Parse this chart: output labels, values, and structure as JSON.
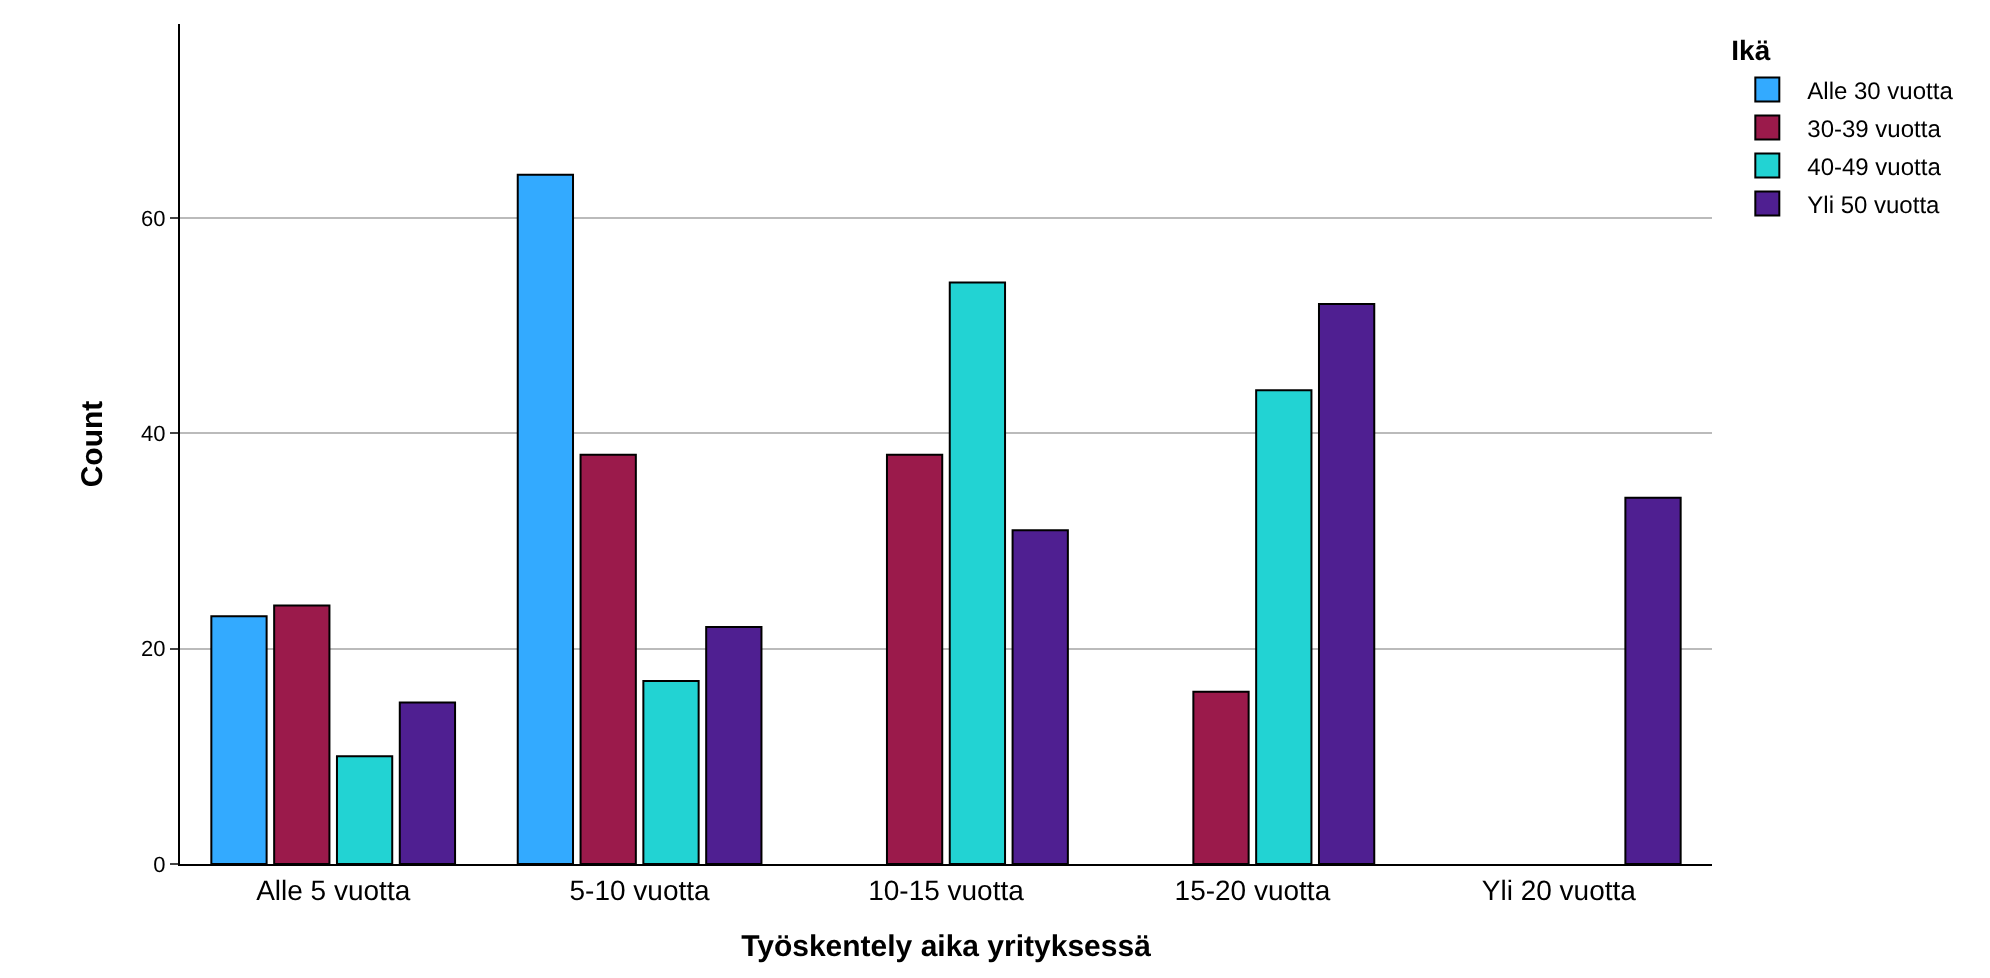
{
  "chart_data": {
    "type": "bar",
    "xlabel": "Työskentely aika yrityksessä",
    "ylabel": "Count",
    "legend_title": "Ikä",
    "categories": [
      "Alle 5 vuotta",
      "5-10 vuotta",
      "10-15 vuotta",
      "15-20 vuotta",
      "Yli 20 vuotta"
    ],
    "series": [
      {
        "name": "Alle 30 vuotta",
        "color": "#33aaff",
        "values": [
          23,
          64,
          null,
          null,
          null
        ]
      },
      {
        "name": "30-39 vuotta",
        "color": "#9b1a4b",
        "values": [
          24,
          38,
          38,
          16,
          null
        ]
      },
      {
        "name": "40-49 vuotta",
        "color": "#22d3d3",
        "values": [
          10,
          17,
          54,
          44,
          null
        ]
      },
      {
        "name": "Yli 50 vuotta",
        "color": "#4f1f91",
        "values": [
          15,
          22,
          31,
          52,
          34
        ]
      }
    ],
    "ylim": [
      0,
      78
    ],
    "yticks": [
      0,
      20,
      40,
      60
    ],
    "grid": "y",
    "legend": "top right"
  }
}
